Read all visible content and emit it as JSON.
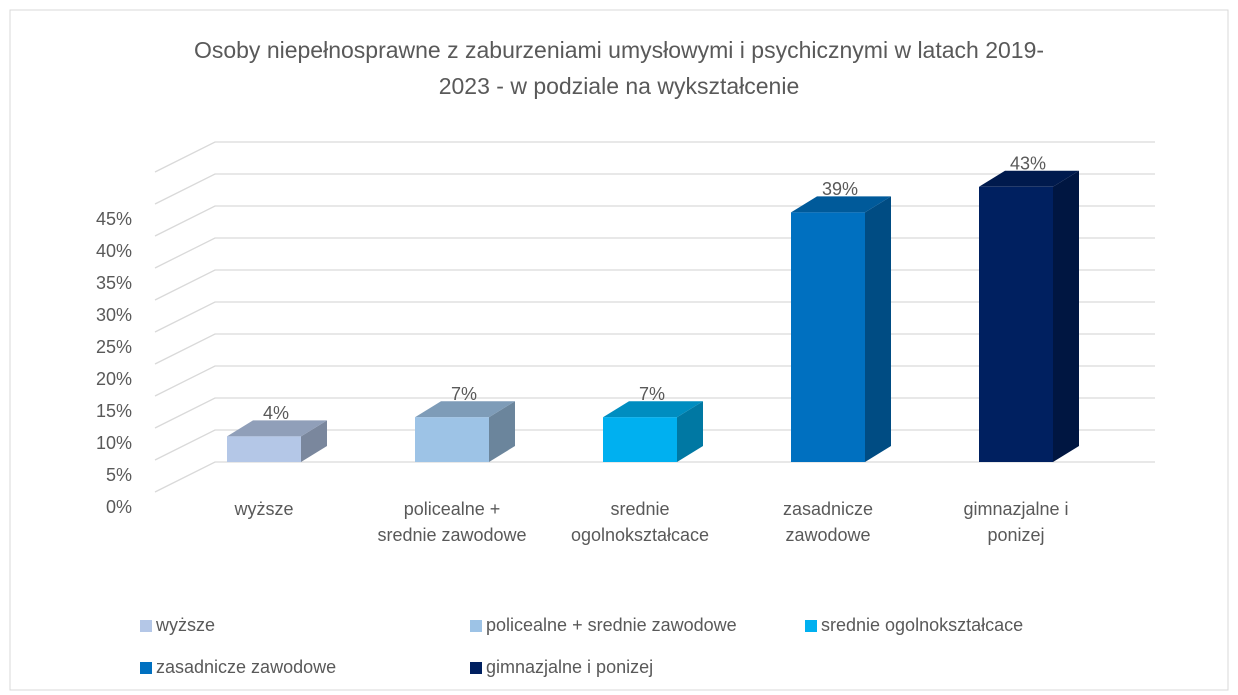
{
  "chart_data": {
    "type": "bar3d",
    "title": "Osoby niepełnosprawne z zaburzeniami umysłowymi i psychicznymi w latach 2019-2023 - w podziale na wykształcenie",
    "categories": [
      "wyższe",
      "policealne + srednie zawodowe",
      "srednie ogolnokształcace",
      "zasadnicze zawodowe",
      "gimnazjalne i ponizej"
    ],
    "values": [
      4,
      7,
      7,
      39,
      43
    ],
    "value_labels": [
      "4%",
      "7%",
      "7%",
      "39%",
      "43%"
    ],
    "colors": [
      "#b4c7e7",
      "#9dc3e6",
      "#00b0f0",
      "#0070c0",
      "#002060"
    ],
    "ylim": [
      0,
      50
    ],
    "yticks": [
      {
        "value": 0,
        "label": "0%"
      },
      {
        "value": 5,
        "label": "5%"
      },
      {
        "value": 10,
        "label": "10%"
      },
      {
        "value": 15,
        "label": "15%"
      },
      {
        "value": 20,
        "label": "20%"
      },
      {
        "value": 25,
        "label": "25%"
      },
      {
        "value": 30,
        "label": "30%"
      },
      {
        "value": 35,
        "label": "35%"
      },
      {
        "value": 40,
        "label": "40%"
      },
      {
        "value": 45,
        "label": "45%"
      }
    ],
    "grid": true,
    "legend": "bottom"
  }
}
